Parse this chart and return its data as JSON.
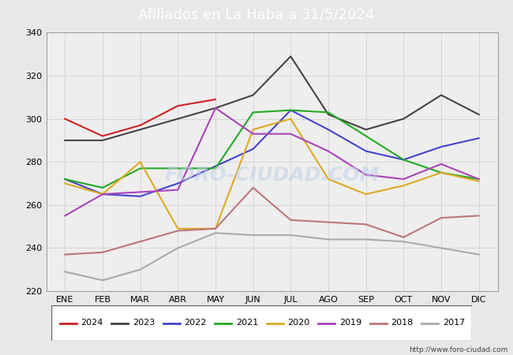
{
  "title": "Afiliados en La Haba a 31/5/2024",
  "title_bg_color": "#5b9bd5",
  "months": [
    "ENE",
    "FEB",
    "MAR",
    "ABR",
    "MAY",
    "JUN",
    "JUL",
    "AGO",
    "SEP",
    "OCT",
    "NOV",
    "DIC"
  ],
  "ylim": [
    220,
    340
  ],
  "yticks": [
    220,
    240,
    260,
    280,
    300,
    320,
    340
  ],
  "series": {
    "2024": {
      "color": "#cc2222",
      "data": [
        300,
        292,
        297,
        306,
        309,
        null,
        null,
        null,
        null,
        null,
        null,
        null
      ]
    },
    "2023": {
      "color": "#444444",
      "data": [
        290,
        290,
        295,
        300,
        305,
        311,
        329,
        302,
        295,
        300,
        311,
        302
      ]
    },
    "2022": {
      "color": "#4444cc",
      "data": [
        272,
        265,
        264,
        270,
        278,
        286,
        304,
        295,
        285,
        281,
        287,
        291
      ]
    },
    "2021": {
      "color": "#22aa22",
      "data": [
        272,
        268,
        277,
        277,
        277,
        303,
        304,
        303,
        292,
        281,
        275,
        272
      ]
    },
    "2020": {
      "color": "#ddaa22",
      "data": [
        270,
        265,
        280,
        249,
        249,
        295,
        300,
        272,
        265,
        269,
        275,
        271
      ]
    },
    "2019": {
      "color": "#aa44bb",
      "data": [
        255,
        265,
        266,
        267,
        305,
        293,
        293,
        285,
        274,
        272,
        279,
        272
      ]
    },
    "2018": {
      "color": "#bb7777",
      "data": [
        237,
        238,
        243,
        248,
        249,
        268,
        253,
        252,
        251,
        245,
        254,
        255
      ]
    },
    "2017": {
      "color": "#aaaaaa",
      "data": [
        229,
        225,
        230,
        240,
        247,
        246,
        246,
        244,
        244,
        243,
        240,
        237
      ]
    }
  },
  "watermark": "FORO-CIUDAD.COM",
  "url": "http://www.foro-ciudad.com",
  "bg_color": "#e8e8e8",
  "plot_bg_color": "#eeeeee",
  "grid_color": "#cccccc",
  "title_fontsize": 13,
  "tick_fontsize": 8,
  "legend_fontsize": 8
}
